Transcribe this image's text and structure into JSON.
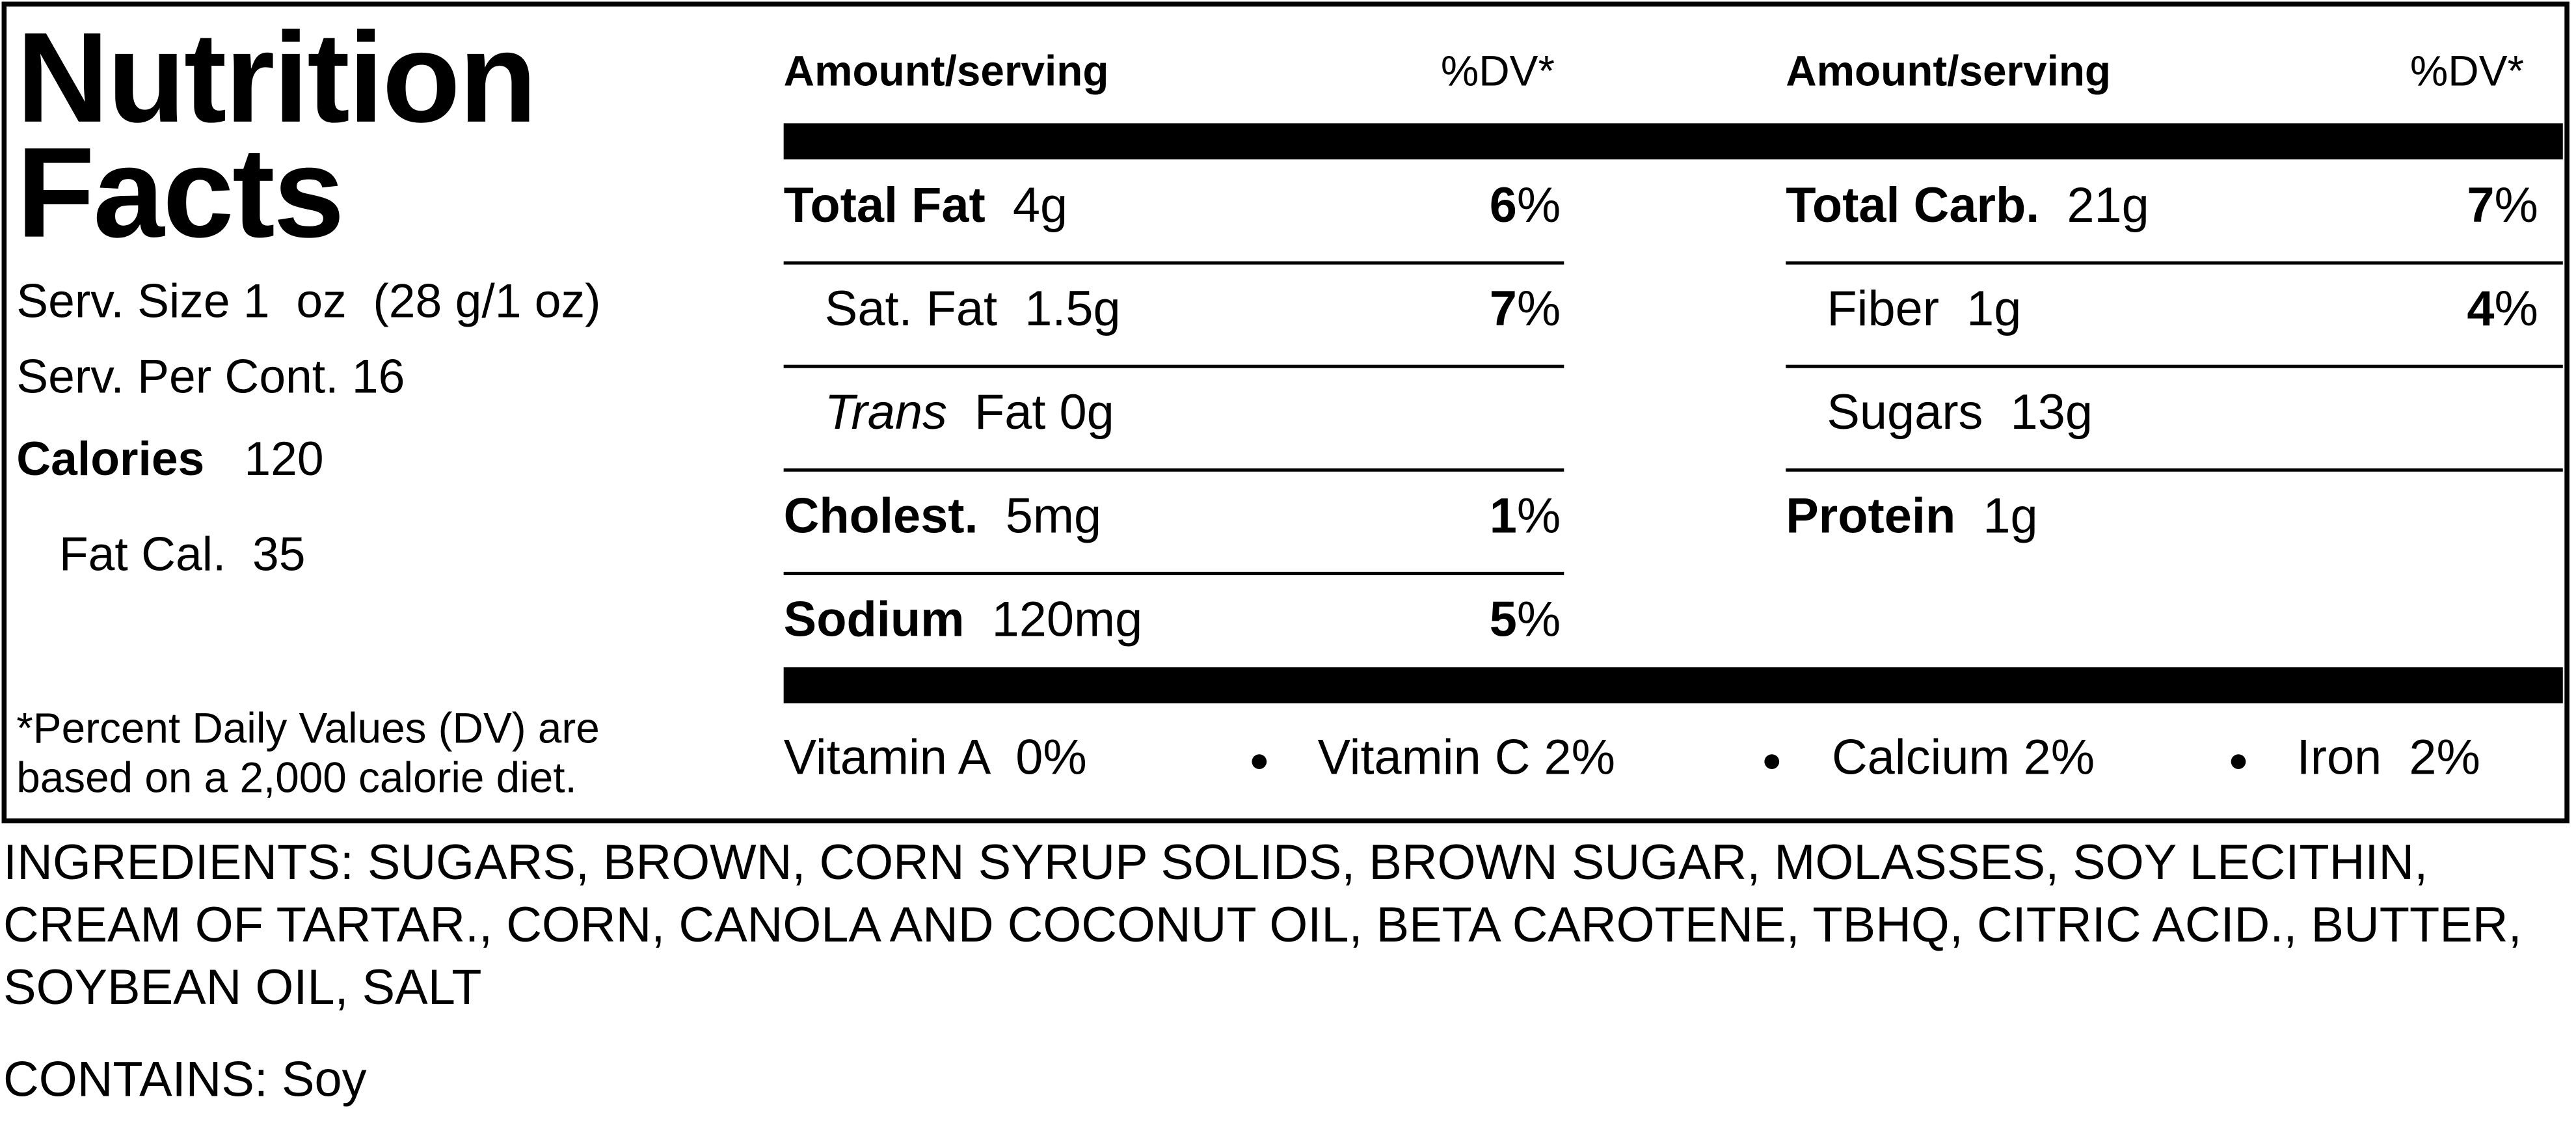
{
  "title": "Nutrition Facts",
  "serving": {
    "size": "Serv. Size 1  oz  (28 g/1 oz)",
    "per_container": "Serv. Per Cont. 16",
    "calories_label": "Calories",
    "calories": "120",
    "fat_calories_label": "Fat Cal.",
    "fat_calories": "35"
  },
  "footnote": "*Percent Daily Values (DV) are based on a 2,000 calorie diet.",
  "headers": [
    {
      "amount": "Amount/serving",
      "dv": "%DV*"
    },
    {
      "amount": "Amount/serving",
      "dv": "%DV*"
    }
  ],
  "left_rows": [
    {
      "name": "Total Fat",
      "amount": "4g",
      "dv": "6",
      "unit": "%"
    },
    {
      "name": "Sat. Fat",
      "amount": "1.5g",
      "dv": "7",
      "unit": "%"
    },
    {
      "name": "Trans",
      "amount": "Fat 0g"
    },
    {
      "name": "Cholest.",
      "amount": "5mg",
      "dv": "1",
      "unit": "%"
    },
    {
      "name": "Sodium",
      "amount": "120mg",
      "dv": "5",
      "unit": "%"
    }
  ],
  "right_rows": [
    {
      "name": "Total Carb.",
      "amount": "21g",
      "dv": "7",
      "unit": "%"
    },
    {
      "name": "Fiber",
      "amount": "1g",
      "dv": "4",
      "unit": "%"
    },
    {
      "name": "Sugars",
      "amount": "13g"
    },
    {
      "name": "Protein",
      "amount": "1g"
    }
  ],
  "vitamins": [
    "Vitamin A  0%",
    "Vitamin C 2%",
    "Calcium 2%",
    "Iron  2%"
  ],
  "ingredients": "INGREDIENTS: SUGARS, BROWN, CORN SYRUP SOLIDS, BROWN SUGAR, MOLASSES, SOY LECITHIN, CREAM OF TARTAR., CORN, CANOLA AND COCONUT OIL, BETA CAROTENE, TBHQ, CITRIC ACID., BUTTER, SOYBEAN OIL, SALT",
  "contains": "CONTAINS: Soy"
}
